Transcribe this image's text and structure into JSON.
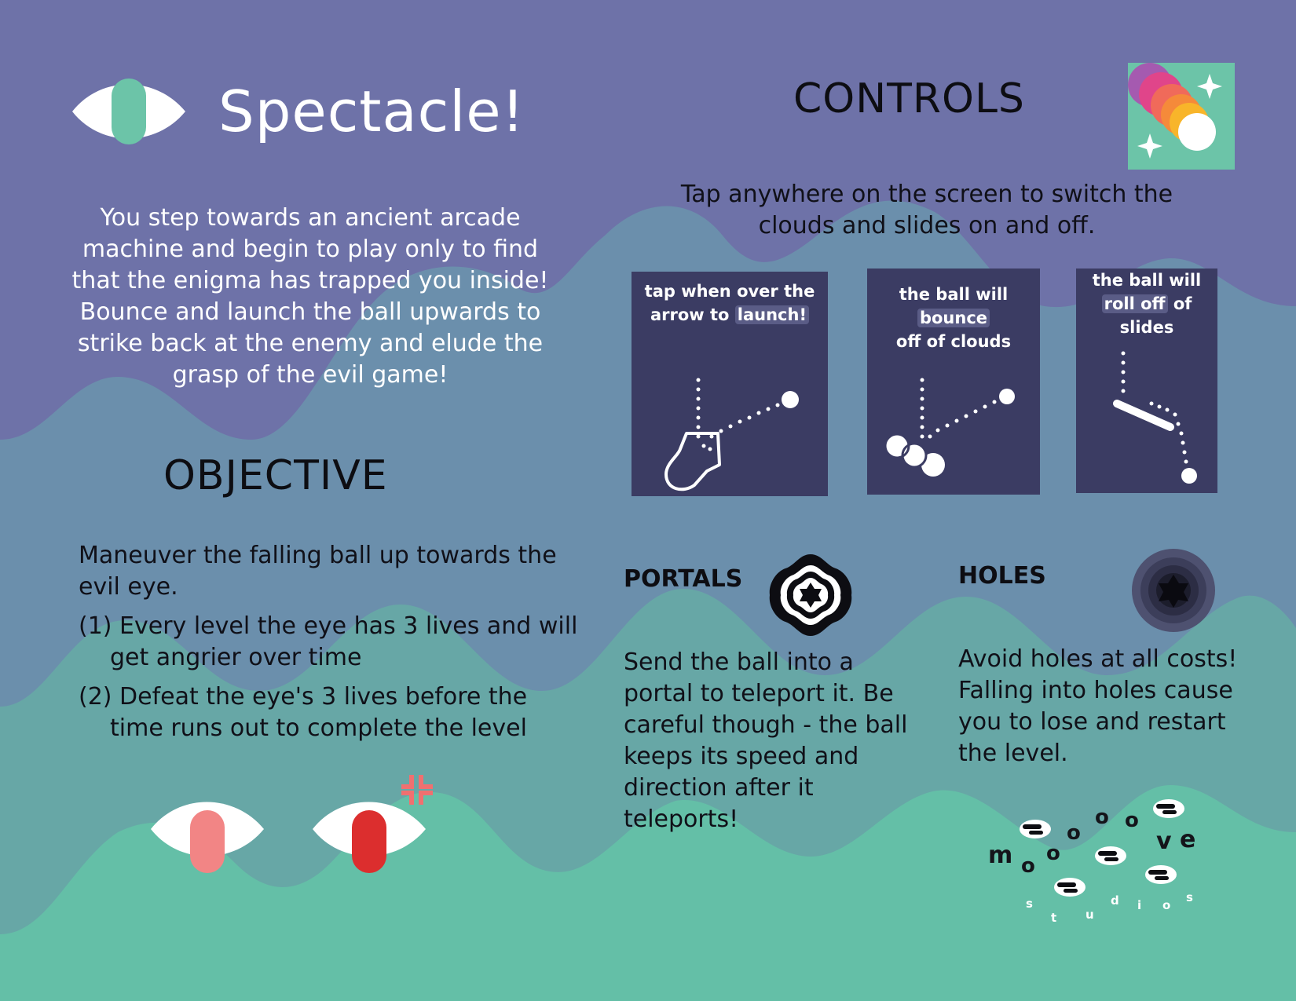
{
  "page": {
    "title": "Spectacle!",
    "intro": "You step towards an ancient arcade machine and begin to play only to find that the enigma has trapped you inside! Bounce and launch the ball upwards to strike back at the enemy and elude the grasp of the evil game!"
  },
  "objective": {
    "heading": "OBJECTIVE",
    "description": "Maneuver the falling ball up towards the evil eye.",
    "items": [
      "(1) Every level the eye has 3 lives and will get angrier over time",
      "(2) Defeat the eye's 3 lives before the time runs out to complete the level"
    ]
  },
  "controls": {
    "heading": "CONTROLS",
    "description": "Tap anywhere on the screen to switch the clouds and slides on and off.",
    "cards": [
      {
        "line1": "tap when over the",
        "line2_pre": "arrow to ",
        "highlight": "launch!",
        "line2_post": ""
      },
      {
        "line1_pre": "the ball will ",
        "highlight": "bounce",
        "line2": "off of clouds"
      },
      {
        "line1": "the ball will",
        "highlight": "roll off",
        "line2_post": " of slides"
      }
    ]
  },
  "portals": {
    "heading": "PORTALS",
    "text": "Send the ball into a portal to teleport it. Be careful though - the ball keeps its speed and direction after it teleports!"
  },
  "holes": {
    "heading": "HOLES",
    "text": "Avoid holes at all costs! Falling into holes cause you to lose and restart the level."
  },
  "logo": {
    "letters": [
      "m",
      "o",
      "o",
      "o",
      "o",
      "o",
      "v",
      "e"
    ],
    "studio_letters": [
      "s",
      "t",
      "u",
      "d",
      "i",
      "o",
      "s"
    ]
  },
  "colors": {
    "background_top": "#6e72a8",
    "wave_mid": "#6b8fac",
    "wave_low": "#67a7a6",
    "wave_bottom": "#64bfa7",
    "eye_pupil_teal": "#6cc4a8",
    "eye_pupil_pink": "#f28585",
    "eye_pupil_red": "#dc2e2e",
    "card_bg": "#3b3c63"
  }
}
